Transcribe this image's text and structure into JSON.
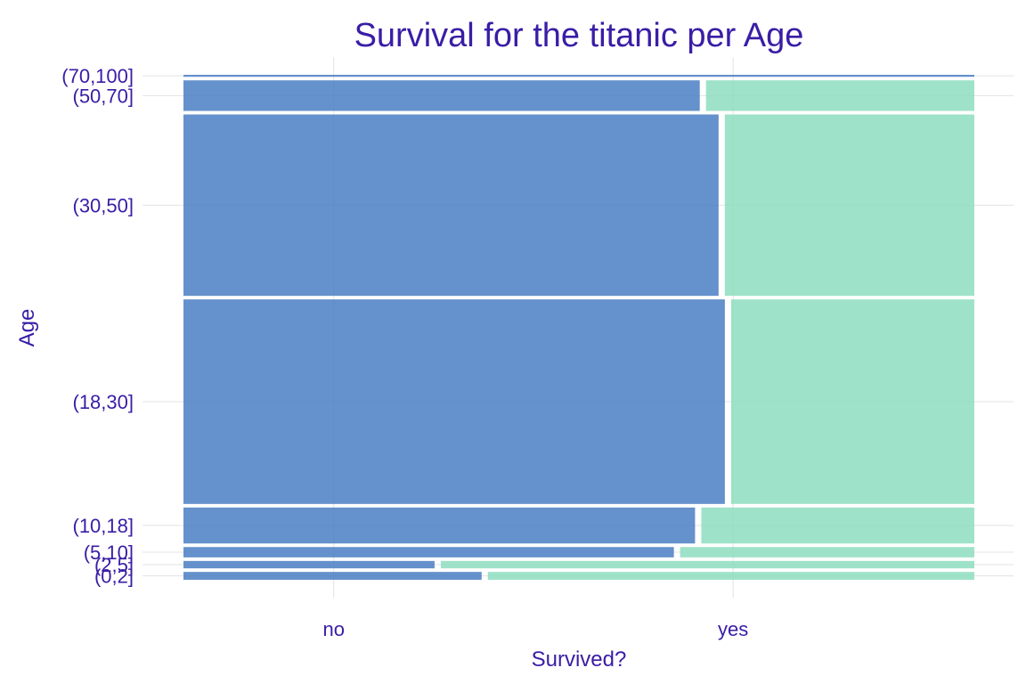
{
  "chart_data": {
    "type": "mosaic",
    "title": "Survival for the titanic per Age",
    "xlabel": "Survived?",
    "ylabel": "Age",
    "x_categories": [
      "no",
      "yes"
    ],
    "series": [
      {
        "name": "no",
        "color": "#4A7EC3"
      },
      {
        "name": "yes",
        "color": "#8DDDBF"
      }
    ],
    "rows": [
      {
        "label": "(0,2]",
        "share": 0.016,
        "proportions": [
          0.38,
          0.62
        ]
      },
      {
        "label": "(2,5]",
        "share": 0.015,
        "proportions": [
          0.32,
          0.68
        ]
      },
      {
        "label": "(5,10]",
        "share": 0.021,
        "proportions": [
          0.625,
          0.375
        ]
      },
      {
        "label": "(10,18]",
        "share": 0.073,
        "proportions": [
          0.652,
          0.348
        ]
      },
      {
        "label": "(18,30]",
        "share": 0.415,
        "proportions": [
          0.69,
          0.31
        ]
      },
      {
        "label": "(30,50]",
        "share": 0.368,
        "proportions": [
          0.682,
          0.318
        ]
      },
      {
        "label": "(50,70]",
        "share": 0.062,
        "proportions": [
          0.658,
          0.342
        ]
      },
      {
        "label": "(70,100]",
        "share": 0.004,
        "proportions": [
          1.0,
          0.0
        ]
      }
    ],
    "grid": true,
    "legend": "none"
  }
}
